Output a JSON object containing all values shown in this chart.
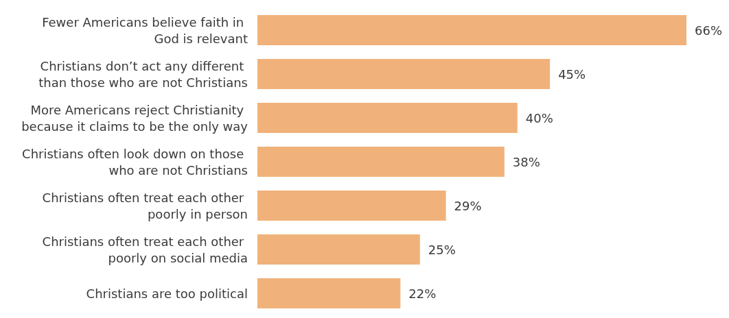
{
  "chart_data": {
    "type": "bar",
    "orientation": "horizontal",
    "categories": [
      "Fewer Americans believe faith in God is relevant",
      "Christians don’t act any different than those who are not Christians",
      "More Americans reject Christianity because it claims to be the only way",
      "Christians often look down on those who are not Christians",
      "Christians often treat each other poorly in person",
      "Christians often treat each other poorly on social media",
      "Christians are too political"
    ],
    "values": [
      66,
      45,
      40,
      38,
      29,
      25,
      22
    ],
    "color": "#f0b27a",
    "value_labels": [
      "66%",
      "45%",
      "40%",
      "38%",
      "29%",
      "25%",
      "22%"
    ]
  }
}
